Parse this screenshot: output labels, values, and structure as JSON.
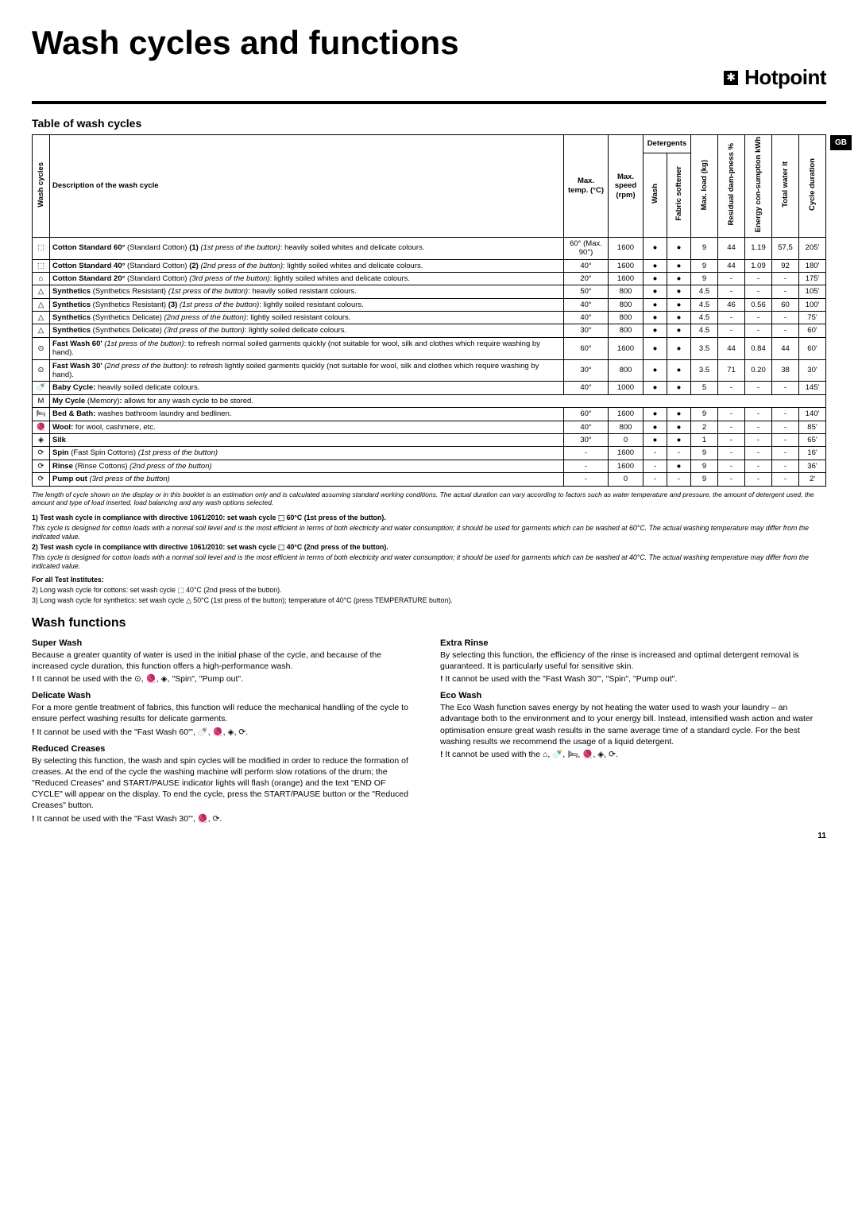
{
  "page": {
    "title": "Wash cycles and functions",
    "brand": "Hotpoint",
    "brand_glyph": "✱",
    "locale_badge": "GB",
    "page_number": "11"
  },
  "table": {
    "heading": "Table of wash cycles",
    "headers": {
      "wash_cycles": "Wash cycles",
      "description": "Description of the wash cycle",
      "max_temp": "Max. temp. (°C)",
      "max_speed": "Max. speed (rpm)",
      "detergents": "Detergents",
      "wash": "Wash",
      "softener": "Fabric softener",
      "max_load": "Max. load (kg)",
      "residual": "Residual dam-pness %",
      "energy": "Energy con-sumption kWh",
      "water": "Total water lt",
      "duration": "Cycle duration"
    },
    "rows": [
      {
        "icon": "⬚",
        "desc_html": "<b>Cotton Standard 60°</b> (Standard Cotton) <b>(1)</b> <i>(1st press of the button)</i>: heavily soiled whites and delicate colours.",
        "temp": "60° (Max. 90°)",
        "speed": "1600",
        "wash": "●",
        "soft": "●",
        "load": "9",
        "res": "44",
        "energy": "1.19",
        "water": "57,5",
        "dur": "205'"
      },
      {
        "icon": "⬚",
        "desc_html": "<b>Cotton Standard 40°</b> (Standard Cotton) <b>(2)</b> <i>(2nd press of the button)</i>: lightly soiled whites and delicate colours.",
        "temp": "40°",
        "speed": "1600",
        "wash": "●",
        "soft": "●",
        "load": "9",
        "res": "44",
        "energy": "1.09",
        "water": "92",
        "dur": "180'"
      },
      {
        "icon": "⌂",
        "desc_html": "<b>Cotton Standard 20°</b> (Standard Cotton) <i>(3rd press of the button)</i>: lightly soiled whites and delicate colours.",
        "temp": "20°",
        "speed": "1600",
        "wash": "●",
        "soft": "●",
        "load": "9",
        "res": "-",
        "energy": "-",
        "water": "-",
        "dur": "175'"
      },
      {
        "icon": "△",
        "desc_html": "<b>Synthetics</b> (Synthetics Resistant) <i>(1st press of the button)</i>: heavily soiled resistant colours.",
        "temp": "50°",
        "speed": "800",
        "wash": "●",
        "soft": "●",
        "load": "4.5",
        "res": "-",
        "energy": "-",
        "water": "-",
        "dur": "105'"
      },
      {
        "icon": "△",
        "desc_html": "<b>Synthetics</b> (Synthetics Resistant) <b>(3)</b> <i>(1st press of the button)</i>: lightly soiled resistant colours.",
        "temp": "40°",
        "speed": "800",
        "wash": "●",
        "soft": "●",
        "load": "4.5",
        "res": "46",
        "energy": "0.56",
        "water": "60",
        "dur": "100'"
      },
      {
        "icon": "△",
        "desc_html": "<b>Synthetics</b> (Synthetics Delicate) <i>(2nd press of the button)</i>: lightly soiled resistant colours.",
        "temp": "40°",
        "speed": "800",
        "wash": "●",
        "soft": "●",
        "load": "4.5",
        "res": "-",
        "energy": "-",
        "water": "-",
        "dur": "75'"
      },
      {
        "icon": "△",
        "desc_html": "<b>Synthetics</b> (Synthetics Delicate) <i>(3rd press of the button)</i>: lightly soiled delicate colours.",
        "temp": "30°",
        "speed": "800",
        "wash": "●",
        "soft": "●",
        "load": "4.5",
        "res": "-",
        "energy": "-",
        "water": "-",
        "dur": "60'"
      },
      {
        "icon": "⊙",
        "desc_html": "<b>Fast Wash 60'</b> <i>(1st press of the button)</i>: to refresh normal soiled garments quickly (not suitable for wool, silk and clothes which require washing by hand).",
        "temp": "60°",
        "speed": "1600",
        "wash": "●",
        "soft": "●",
        "load": "3.5",
        "res": "44",
        "energy": "0.84",
        "water": "44",
        "dur": "60'"
      },
      {
        "icon": "⊙",
        "desc_html": "<b>Fast Wash 30'</b> <i>(2nd press of the button)</i>: to refresh lightly soiled garments quickly (not suitable for wool, silk and clothes which require washing by hand).",
        "temp": "30°",
        "speed": "800",
        "wash": "●",
        "soft": "●",
        "load": "3.5",
        "res": "71",
        "energy": "0.20",
        "water": "38",
        "dur": "30'"
      },
      {
        "icon": "🍼",
        "desc_html": "<b>Baby Cycle:</b> heavily soiled delicate colours.",
        "temp": "40°",
        "speed": "1000",
        "wash": "●",
        "soft": "●",
        "load": "5",
        "res": "-",
        "energy": "-",
        "water": "-",
        "dur": "145'"
      },
      {
        "icon": "M",
        "desc_html": "<b>My Cycle</b> (Memory)<b>:</b> allows for any wash cycle to be stored.",
        "full": true
      },
      {
        "icon": "🛏",
        "desc_html": "<b>Bed & Bath:</b> washes bathroom laundry and bedlinen.",
        "temp": "60°",
        "speed": "1600",
        "wash": "●",
        "soft": "●",
        "load": "9",
        "res": "-",
        "energy": "-",
        "water": "-",
        "dur": "140'"
      },
      {
        "icon": "🧶",
        "desc_html": "<b>Wool:</b> for wool, cashmere, etc.",
        "temp": "40°",
        "speed": "800",
        "wash": "●",
        "soft": "●",
        "load": "2",
        "res": "-",
        "energy": "-",
        "water": "-",
        "dur": "85'"
      },
      {
        "icon": "◈",
        "desc_html": "<b>Silk</b>",
        "temp": "30°",
        "speed": "0",
        "wash": "●",
        "soft": "●",
        "load": "1",
        "res": "-",
        "energy": "-",
        "water": "-",
        "dur": "65'"
      },
      {
        "icon": "⟳",
        "desc_html": "<b>Spin</b> (Fast Spin Cottons) <i>(1st press of the button)</i>",
        "temp": "-",
        "speed": "1600",
        "wash": "-",
        "soft": "-",
        "load": "9",
        "res": "-",
        "energy": "-",
        "water": "-",
        "dur": "16'"
      },
      {
        "icon": "⟳",
        "desc_html": "<b>Rinse</b> (Rinse Cottons) <i>(2nd press of the button)</i>",
        "temp": "-",
        "speed": "1600",
        "wash": "-",
        "soft": "●",
        "load": "9",
        "res": "-",
        "energy": "-",
        "water": "-",
        "dur": "36'"
      },
      {
        "icon": "⟳",
        "desc_html": "<b>Pump out</b> <i>(3rd press of the button)</i>",
        "temp": "-",
        "speed": "0",
        "wash": "-",
        "soft": "-",
        "load": "9",
        "res": "-",
        "energy": "-",
        "water": "-",
        "dur": "2'"
      }
    ],
    "footnote": "The length of cycle shown on the display or in this booklet is an estimation only and is calculated assuming standard working conditions. The actual duration can vary according to factors such as water temperature and pressure, the amount of detergent used, the amount and type of load inserted, load balancing and any wash options selected."
  },
  "compliance": {
    "l1": "1) Test wash cycle in compliance with directive 1061/2010: set wash cycle ⬚ 60°C (1st press of the button).",
    "l2": "This cycle is designed for cotton loads with a normal soil level and is the most efficient in terms of both electricity and water consumption; it should be used for garments which can be washed at 60°C. The actual washing temperature may differ from the indicated value.",
    "l3": "2) Test wash cycle in compliance with directive 1061/2010: set wash cycle ⬚ 40°C (2nd press of the button).",
    "l4": "This cycle is designed for cotton loads with a normal soil level and is the most efficient in terms of both electricity and water consumption; it should be used for garments which can be washed at 40°C. The actual washing temperature may differ from the indicated value.",
    "inst_h": "For all Test Institutes:",
    "inst_2": "2) Long wash cycle for cottons: set wash cycle ⬚ 40°C (2nd press of the button).",
    "inst_3": "3) Long wash cycle for synthetics: set wash cycle △ 50°C (1st press of the button); temperature of 40°C (press TEMPERATURE button)."
  },
  "functions": {
    "heading": "Wash functions",
    "left": [
      {
        "h": "Super Wash",
        "p": "Because a greater quantity of water is used in the initial phase of the cycle, and because of the increased cycle duration, this function offers a high-performance wash.",
        "warn": "It cannot be used with the ⊙, 🧶, ◈, \"Spin\", \"Pump out\"."
      },
      {
        "h": "Delicate Wash",
        "p": "For a more gentle treatment of fabrics, this function will reduce the mechanical handling of the cycle to ensure perfect washing results for delicate garments.",
        "warn": "It cannot be used with the \"Fast Wash 60'\", 🍼, 🧶, ◈, ⟳."
      },
      {
        "h": "Reduced Creases",
        "p": "By selecting this function, the wash and spin cycles will be modified in order to reduce the formation of creases. At the end of the cycle the washing machine will perform slow rotations of the drum; the \"Reduced Creases\" and START/PAUSE indicator lights will flash (orange) and the text \"END OF CYCLE\" will appear on the display. To end the cycle, press the START/PAUSE button or the \"Reduced Creases\" button.",
        "warn": "It cannot be used with the \"Fast Wash 30'\", 🧶, ⟳."
      }
    ],
    "right": [
      {
        "h": "Extra Rinse",
        "p": "By selecting this function, the efficiency of the rinse is increased and optimal detergent removal is guaranteed. It is particularly useful for sensitive skin.",
        "warn": "It cannot be used with the \"Fast Wash 30'\", \"Spin\", \"Pump out\"."
      },
      {
        "h": "Eco Wash",
        "p": "The Eco Wash function saves energy by not heating the water used to wash your laundry – an advantage both to the environment and to your energy bill. Instead, intensified wash action and water optimisation ensure great wash results in the same average time of a standard cycle. For the best washing results we recommend the usage of a liquid detergent.",
        "warn": "It cannot be used with the ⌂, 🍼, 🛏, 🧶, ◈, ⟳."
      }
    ]
  }
}
